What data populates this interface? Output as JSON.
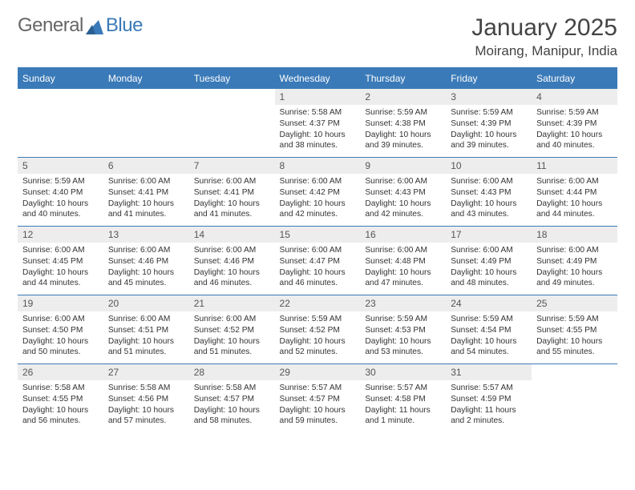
{
  "brand": {
    "part1": "General",
    "part2": "Blue"
  },
  "title": "January 2025",
  "location": "Moirang, Manipur, India",
  "colors": {
    "header_bg": "#3a7ab8",
    "header_text": "#ffffff",
    "daynum_bg": "#ededed",
    "border": "#3a7ab8",
    "title_color": "#444444",
    "body_text": "#333333"
  },
  "weekdays": [
    "Sunday",
    "Monday",
    "Tuesday",
    "Wednesday",
    "Thursday",
    "Friday",
    "Saturday"
  ],
  "weeks": [
    [
      {
        "n": "",
        "sr": "",
        "ss": "",
        "dl": ""
      },
      {
        "n": "",
        "sr": "",
        "ss": "",
        "dl": ""
      },
      {
        "n": "",
        "sr": "",
        "ss": "",
        "dl": ""
      },
      {
        "n": "1",
        "sr": "5:58 AM",
        "ss": "4:37 PM",
        "dl": "10 hours and 38 minutes."
      },
      {
        "n": "2",
        "sr": "5:59 AM",
        "ss": "4:38 PM",
        "dl": "10 hours and 39 minutes."
      },
      {
        "n": "3",
        "sr": "5:59 AM",
        "ss": "4:39 PM",
        "dl": "10 hours and 39 minutes."
      },
      {
        "n": "4",
        "sr": "5:59 AM",
        "ss": "4:39 PM",
        "dl": "10 hours and 40 minutes."
      }
    ],
    [
      {
        "n": "5",
        "sr": "5:59 AM",
        "ss": "4:40 PM",
        "dl": "10 hours and 40 minutes."
      },
      {
        "n": "6",
        "sr": "6:00 AM",
        "ss": "4:41 PM",
        "dl": "10 hours and 41 minutes."
      },
      {
        "n": "7",
        "sr": "6:00 AM",
        "ss": "4:41 PM",
        "dl": "10 hours and 41 minutes."
      },
      {
        "n": "8",
        "sr": "6:00 AM",
        "ss": "4:42 PM",
        "dl": "10 hours and 42 minutes."
      },
      {
        "n": "9",
        "sr": "6:00 AM",
        "ss": "4:43 PM",
        "dl": "10 hours and 42 minutes."
      },
      {
        "n": "10",
        "sr": "6:00 AM",
        "ss": "4:43 PM",
        "dl": "10 hours and 43 minutes."
      },
      {
        "n": "11",
        "sr": "6:00 AM",
        "ss": "4:44 PM",
        "dl": "10 hours and 44 minutes."
      }
    ],
    [
      {
        "n": "12",
        "sr": "6:00 AM",
        "ss": "4:45 PM",
        "dl": "10 hours and 44 minutes."
      },
      {
        "n": "13",
        "sr": "6:00 AM",
        "ss": "4:46 PM",
        "dl": "10 hours and 45 minutes."
      },
      {
        "n": "14",
        "sr": "6:00 AM",
        "ss": "4:46 PM",
        "dl": "10 hours and 46 minutes."
      },
      {
        "n": "15",
        "sr": "6:00 AM",
        "ss": "4:47 PM",
        "dl": "10 hours and 46 minutes."
      },
      {
        "n": "16",
        "sr": "6:00 AM",
        "ss": "4:48 PM",
        "dl": "10 hours and 47 minutes."
      },
      {
        "n": "17",
        "sr": "6:00 AM",
        "ss": "4:49 PM",
        "dl": "10 hours and 48 minutes."
      },
      {
        "n": "18",
        "sr": "6:00 AM",
        "ss": "4:49 PM",
        "dl": "10 hours and 49 minutes."
      }
    ],
    [
      {
        "n": "19",
        "sr": "6:00 AM",
        "ss": "4:50 PM",
        "dl": "10 hours and 50 minutes."
      },
      {
        "n": "20",
        "sr": "6:00 AM",
        "ss": "4:51 PM",
        "dl": "10 hours and 51 minutes."
      },
      {
        "n": "21",
        "sr": "6:00 AM",
        "ss": "4:52 PM",
        "dl": "10 hours and 51 minutes."
      },
      {
        "n": "22",
        "sr": "5:59 AM",
        "ss": "4:52 PM",
        "dl": "10 hours and 52 minutes."
      },
      {
        "n": "23",
        "sr": "5:59 AM",
        "ss": "4:53 PM",
        "dl": "10 hours and 53 minutes."
      },
      {
        "n": "24",
        "sr": "5:59 AM",
        "ss": "4:54 PM",
        "dl": "10 hours and 54 minutes."
      },
      {
        "n": "25",
        "sr": "5:59 AM",
        "ss": "4:55 PM",
        "dl": "10 hours and 55 minutes."
      }
    ],
    [
      {
        "n": "26",
        "sr": "5:58 AM",
        "ss": "4:55 PM",
        "dl": "10 hours and 56 minutes."
      },
      {
        "n": "27",
        "sr": "5:58 AM",
        "ss": "4:56 PM",
        "dl": "10 hours and 57 minutes."
      },
      {
        "n": "28",
        "sr": "5:58 AM",
        "ss": "4:57 PM",
        "dl": "10 hours and 58 minutes."
      },
      {
        "n": "29",
        "sr": "5:57 AM",
        "ss": "4:57 PM",
        "dl": "10 hours and 59 minutes."
      },
      {
        "n": "30",
        "sr": "5:57 AM",
        "ss": "4:58 PM",
        "dl": "11 hours and 1 minute."
      },
      {
        "n": "31",
        "sr": "5:57 AM",
        "ss": "4:59 PM",
        "dl": "11 hours and 2 minutes."
      },
      {
        "n": "",
        "sr": "",
        "ss": "",
        "dl": ""
      }
    ]
  ],
  "labels": {
    "sunrise": "Sunrise: ",
    "sunset": "Sunset: ",
    "daylight": "Daylight: "
  }
}
